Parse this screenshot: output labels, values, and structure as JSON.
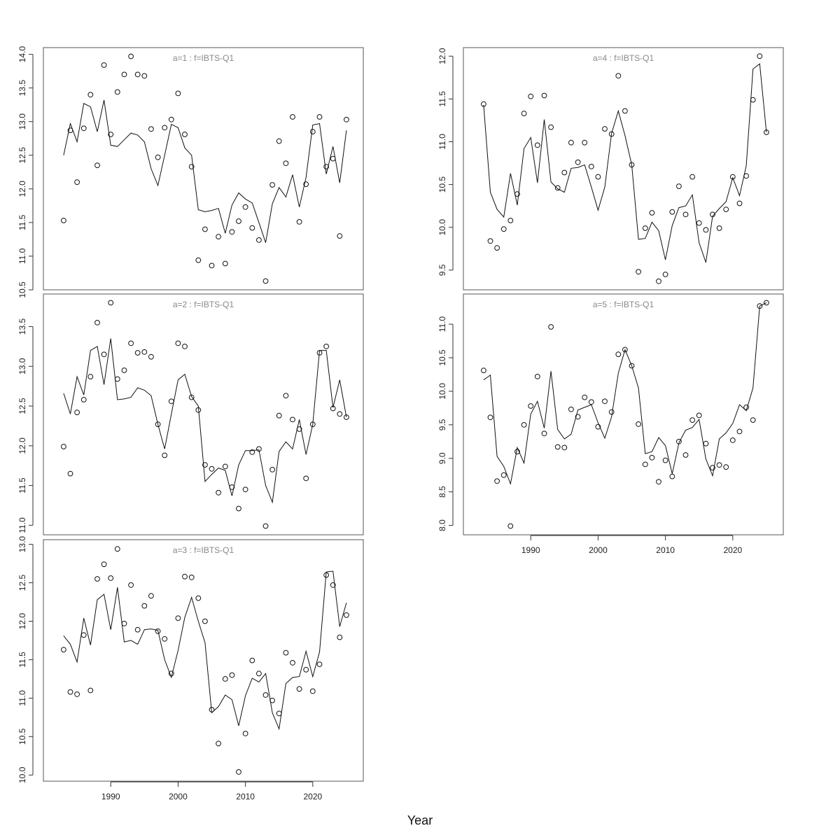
{
  "chart_data": {
    "type": "scatter+line",
    "xlabel": "Year",
    "x": [
      1983,
      1984,
      1985,
      1986,
      1987,
      1988,
      1989,
      1990,
      1991,
      1992,
      1993,
      1994,
      1995,
      1996,
      1997,
      1998,
      1999,
      2000,
      2001,
      2002,
      2003,
      2004,
      2005,
      2006,
      2007,
      2008,
      2009,
      2010,
      2011,
      2012,
      2013,
      2014,
      2015,
      2016,
      2017,
      2018,
      2019,
      2020,
      2021,
      2022,
      2023,
      2024,
      2025
    ],
    "xticks": [
      1990,
      2000,
      2010,
      2020
    ],
    "xlim": [
      1980,
      2027.5
    ],
    "grid": false,
    "panels": [
      {
        "title": "a=1  :  f=IBTS-Q1",
        "ylim": [
          10.5,
          14.1
        ],
        "yticks": [
          "10.5",
          "11.0",
          "11.5",
          "12.0",
          "12.5",
          "13.0",
          "13.5",
          "14.0"
        ],
        "points": [
          11.53,
          12.87,
          12.1,
          12.9,
          13.4,
          12.35,
          13.84,
          12.81,
          13.44,
          13.7,
          13.97,
          13.7,
          13.68,
          12.89,
          12.47,
          12.91,
          13.03,
          13.42,
          12.81,
          12.33,
          10.94,
          11.4,
          10.86,
          11.29,
          10.89,
          11.36,
          11.52,
          11.73,
          11.42,
          11.24,
          10.63,
          12.06,
          12.71,
          12.38,
          13.07,
          11.51,
          12.07,
          12.85,
          13.07,
          12.33,
          12.45,
          11.3,
          13.03
        ],
        "line": [
          12.5,
          12.97,
          12.7,
          13.27,
          13.22,
          12.85,
          13.32,
          12.65,
          12.63,
          12.73,
          12.83,
          12.8,
          12.7,
          12.3,
          12.05,
          12.5,
          12.96,
          12.91,
          12.61,
          12.5,
          11.69,
          11.66,
          11.68,
          11.71,
          11.34,
          11.76,
          11.94,
          11.85,
          11.79,
          11.5,
          11.2,
          11.78,
          12.02,
          11.88,
          12.21,
          11.73,
          12.17,
          12.95,
          12.97,
          12.22,
          12.63,
          12.09,
          12.87
        ]
      },
      {
        "title": "a=2  :  f=IBTS-Q1",
        "ylim": [
          10.88,
          13.91
        ],
        "yticks": [
          "11.0",
          "11.5",
          "12.0",
          "12.5",
          "13.0",
          "13.5"
        ],
        "points": [
          11.99,
          11.65,
          12.42,
          12.58,
          12.87,
          13.55,
          13.15,
          13.8,
          12.84,
          12.95,
          13.29,
          13.17,
          13.18,
          13.12,
          12.27,
          11.88,
          12.56,
          13.29,
          13.25,
          12.61,
          12.45,
          11.76,
          11.71,
          11.41,
          11.74,
          11.48,
          11.21,
          11.45,
          11.92,
          11.96,
          10.99,
          11.7,
          12.38,
          12.63,
          12.33,
          12.21,
          11.59,
          12.27,
          13.17,
          13.25,
          12.47,
          12.4,
          12.36
        ],
        "line": [
          12.66,
          12.4,
          12.87,
          12.64,
          13.2,
          13.25,
          12.77,
          13.35,
          12.58,
          12.59,
          12.61,
          12.73,
          12.7,
          12.63,
          12.27,
          11.96,
          12.4,
          12.83,
          12.9,
          12.62,
          12.5,
          11.55,
          11.64,
          11.72,
          11.69,
          11.37,
          11.76,
          11.94,
          11.94,
          11.95,
          11.5,
          11.29,
          11.93,
          12.05,
          11.96,
          12.33,
          11.89,
          12.27,
          13.2,
          13.2,
          12.48,
          12.83,
          12.36
        ]
      },
      {
        "title": "a=3  :  f=IBTS-Q1",
        "ylim": [
          9.92,
          13.06
        ],
        "yticks": [
          "10.0",
          "10.5",
          "11.0",
          "11.5",
          "12.0",
          "12.5",
          "13.0"
        ],
        "points": [
          11.63,
          11.08,
          11.05,
          11.82,
          11.1,
          12.55,
          12.74,
          12.56,
          12.94,
          11.97,
          12.47,
          11.89,
          12.2,
          12.33,
          11.87,
          11.77,
          11.32,
          12.04,
          12.58,
          12.57,
          12.3,
          12.0,
          10.85,
          10.41,
          11.25,
          11.3,
          10.04,
          10.54,
          11.49,
          11.32,
          11.04,
          10.97,
          10.8,
          11.59,
          11.46,
          11.12,
          11.37,
          11.09,
          11.44,
          12.6,
          12.47,
          11.79,
          12.08
        ],
        "line": [
          11.81,
          11.7,
          11.47,
          12.04,
          11.69,
          12.28,
          12.35,
          11.89,
          12.44,
          11.73,
          11.75,
          11.7,
          11.89,
          11.9,
          11.88,
          11.5,
          11.27,
          11.62,
          12.05,
          12.31,
          12.0,
          11.72,
          10.81,
          10.89,
          11.04,
          10.98,
          10.64,
          11.03,
          11.26,
          11.21,
          11.32,
          10.81,
          10.6,
          11.19,
          11.27,
          11.28,
          11.61,
          11.28,
          11.6,
          12.64,
          12.65,
          11.93,
          12.24
        ]
      },
      {
        "title": "a=4  :  f=IBTS-Q1",
        "ylim": [
          9.27,
          12.1
        ],
        "yticks": [
          "9.5",
          "10.0",
          "10.5",
          "11.0",
          "11.5",
          "12.0"
        ],
        "points": [
          11.44,
          9.84,
          9.76,
          9.98,
          10.08,
          10.39,
          11.33,
          11.53,
          10.96,
          11.54,
          11.17,
          10.46,
          10.64,
          10.99,
          10.76,
          10.99,
          10.71,
          10.59,
          11.15,
          11.09,
          11.77,
          11.36,
          10.73,
          9.48,
          9.99,
          10.17,
          9.37,
          9.45,
          10.18,
          10.48,
          10.15,
          10.59,
          10.05,
          9.97,
          10.15,
          9.99,
          10.21,
          10.59,
          10.28,
          10.6,
          11.49,
          12.0,
          11.11
        ],
        "line": [
          11.43,
          10.41,
          10.21,
          10.12,
          10.63,
          10.26,
          10.92,
          11.05,
          10.52,
          11.26,
          10.53,
          10.45,
          10.41,
          10.69,
          10.7,
          10.73,
          10.47,
          10.2,
          10.47,
          11.1,
          11.36,
          11.07,
          10.73,
          9.86,
          9.87,
          10.06,
          9.96,
          9.62,
          10.02,
          10.23,
          10.25,
          10.38,
          9.82,
          9.59,
          10.13,
          10.22,
          10.3,
          10.58,
          10.37,
          10.72,
          11.85,
          11.91,
          11.11
        ]
      },
      {
        "title": "a=5  :  f=IBTS-Q1",
        "ylim": [
          7.86,
          11.45
        ],
        "yticks": [
          "8.0",
          "8.5",
          "9.0",
          "9.5",
          "10.0",
          "10.5",
          "11.0"
        ],
        "points": [
          10.31,
          9.61,
          8.66,
          8.75,
          7.99,
          9.1,
          9.5,
          9.78,
          10.22,
          9.37,
          10.96,
          9.17,
          9.16,
          9.73,
          9.62,
          9.91,
          9.84,
          9.47,
          9.85,
          9.69,
          10.55,
          10.62,
          10.38,
          9.51,
          8.91,
          9.01,
          8.65,
          8.97,
          8.73,
          9.25,
          9.05,
          9.57,
          9.64,
          9.22,
          8.86,
          8.9,
          8.87,
          9.27,
          9.4,
          9.76,
          9.57,
          11.27,
          11.32
        ],
        "line": [
          10.17,
          10.24,
          9.03,
          8.88,
          8.62,
          9.16,
          8.93,
          9.66,
          9.85,
          9.45,
          10.3,
          9.43,
          9.29,
          9.36,
          9.72,
          9.76,
          9.8,
          9.53,
          9.3,
          9.62,
          10.27,
          10.62,
          10.38,
          10.05,
          9.07,
          9.1,
          9.31,
          9.19,
          8.77,
          9.23,
          9.42,
          9.46,
          9.58,
          8.99,
          8.74,
          9.29,
          9.38,
          9.52,
          9.8,
          9.71,
          10.05,
          11.27,
          11.32
        ]
      }
    ]
  }
}
